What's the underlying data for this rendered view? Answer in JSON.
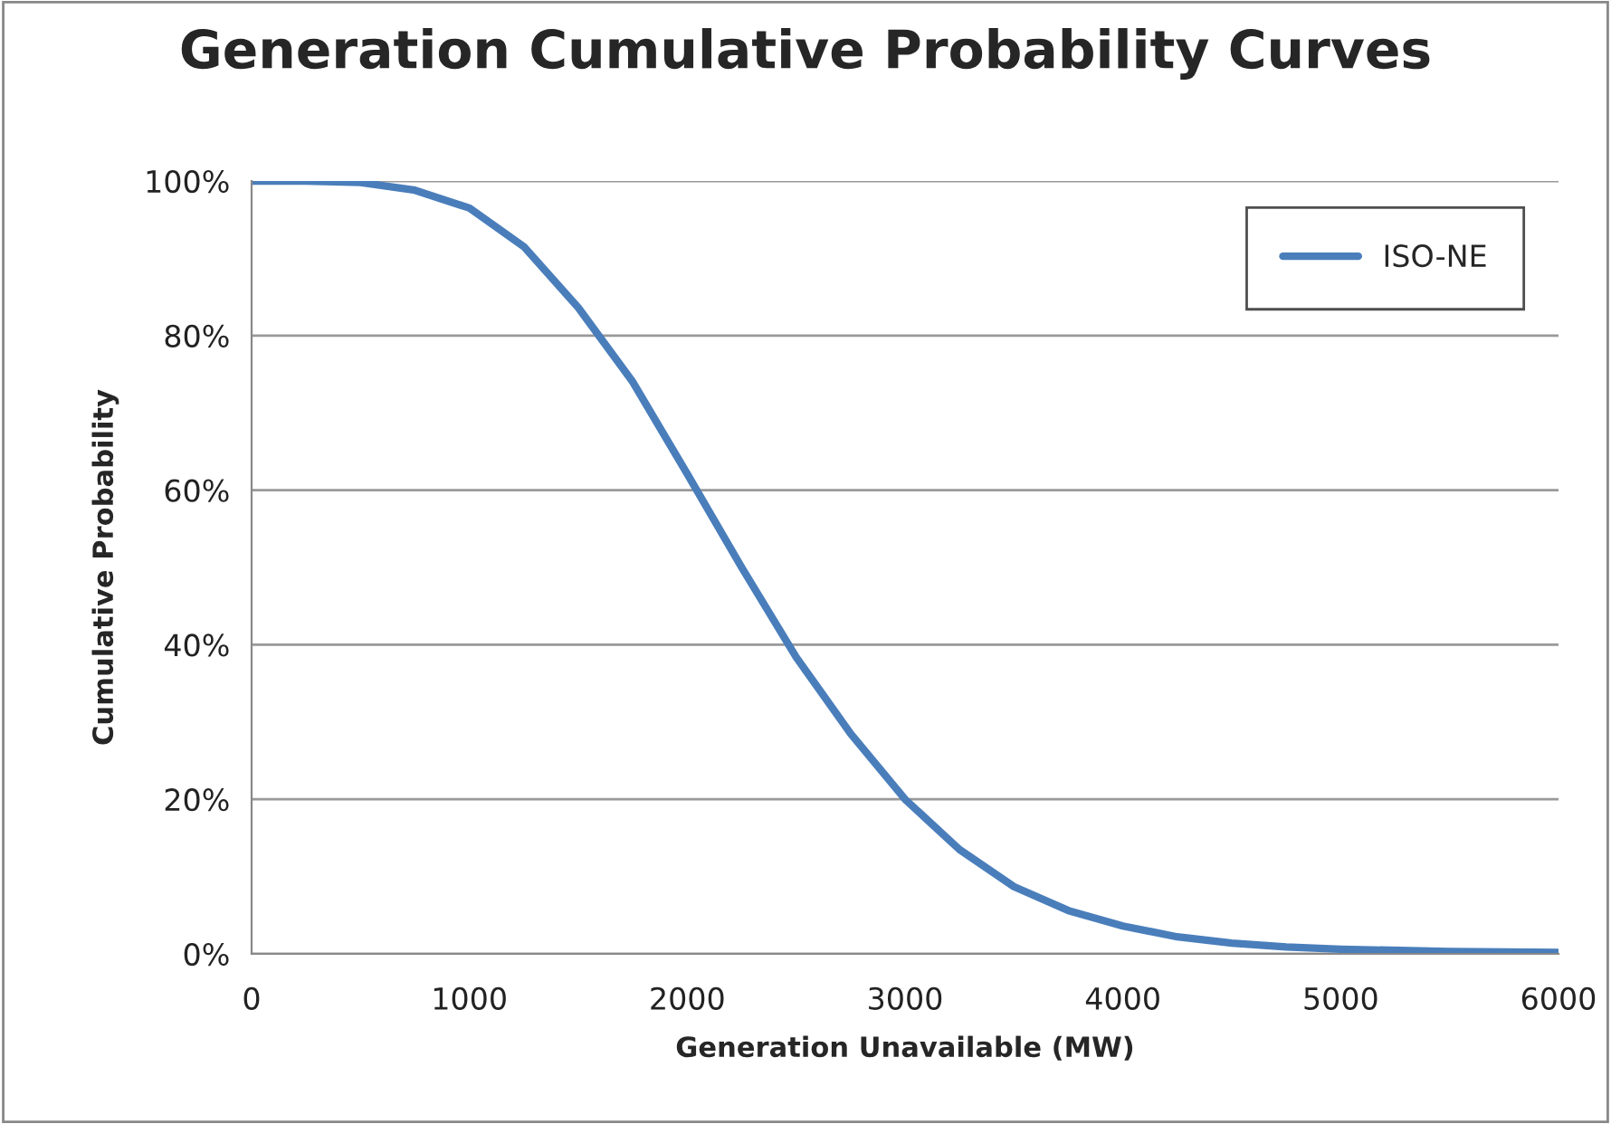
{
  "chart_data": {
    "type": "line",
    "title": "Generation Cumulative Probability Curves",
    "xlabel": "Generation Unavailable (MW)",
    "ylabel": "Cumulative Probability",
    "x": [
      0,
      250,
      500,
      750,
      1000,
      1250,
      1500,
      1750,
      2000,
      2250,
      2500,
      2750,
      3000,
      3250,
      3500,
      3750,
      4000,
      4250,
      4500,
      4750,
      5000,
      5500,
      6000
    ],
    "series": [
      {
        "name": "ISO-NE",
        "color": "#4a7ebb",
        "values": [
          100,
          100,
          99.8,
          98.8,
          96.5,
          91.5,
          83.6,
          74,
          62.1,
          50,
          38.4,
          28.5,
          20,
          13.5,
          8.7,
          5.6,
          3.6,
          2.2,
          1.4,
          0.9,
          0.6,
          0.3,
          0.2
        ]
      }
    ],
    "xlim": [
      0,
      6000
    ],
    "xticks": [
      0,
      1000,
      2000,
      3000,
      4000,
      5000,
      6000
    ],
    "ylim": [
      0,
      100
    ],
    "yticks": [
      {
        "value": 0,
        "label": "0%"
      },
      {
        "value": 20,
        "label": "20%"
      },
      {
        "value": 40,
        "label": "40%"
      },
      {
        "value": 60,
        "label": "60%"
      },
      {
        "value": 80,
        "label": "80%"
      },
      {
        "value": 100,
        "label": "100%"
      }
    ],
    "grid": "y",
    "legend": "top right",
    "marker": "none",
    "line_style": "solid"
  }
}
